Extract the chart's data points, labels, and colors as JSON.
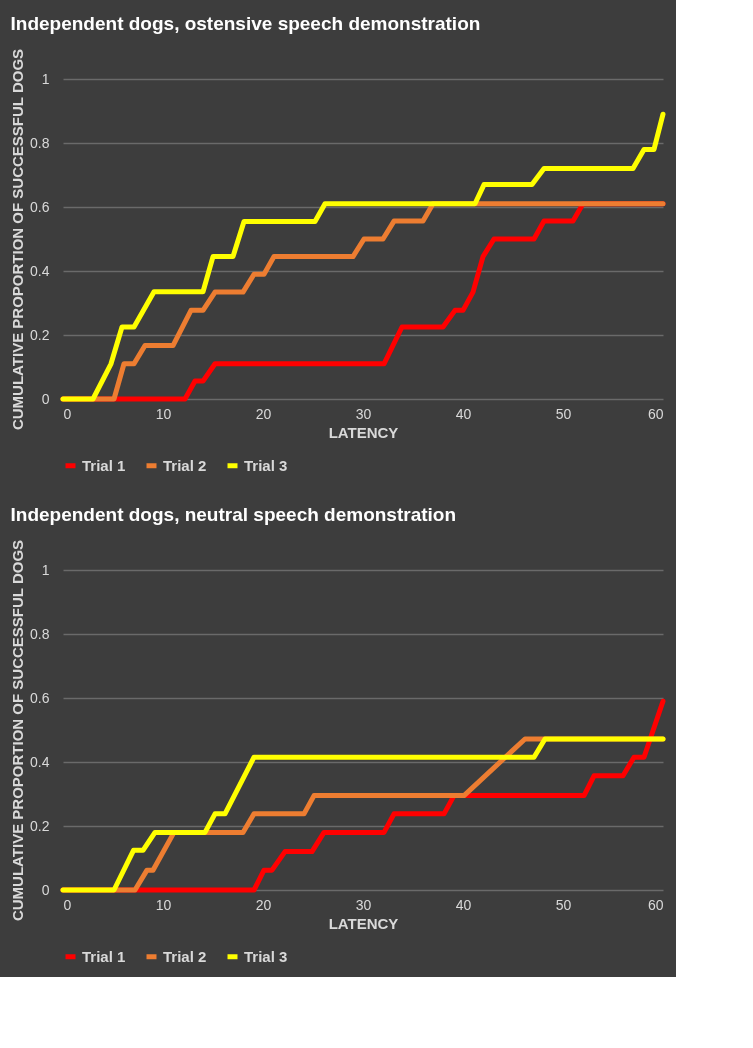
{
  "chart_data": [
    {
      "type": "line",
      "title": "Independent dogs, ostensive speech demonstration",
      "xlabel": "LATENCY",
      "ylabel": "CUMULATIVE PROPORTION OF SUCCESSFUL DOGS",
      "xlim": [
        0,
        60
      ],
      "ylim": [
        0,
        1
      ],
      "xticks": [
        0,
        10,
        20,
        30,
        40,
        50,
        60
      ],
      "yticks": [
        0,
        0.2,
        0.4,
        0.6,
        0.8,
        1
      ],
      "grid": "y",
      "legend": "bottom",
      "series": [
        {
          "name": "Trial 1",
          "color": "#ff0000",
          "x": [
            0,
            12.2,
            13.2,
            14.0,
            15.2,
            32.1,
            33.9,
            38.0,
            39.2,
            40.0,
            41.0,
            42.0,
            43.1,
            47.1,
            48.1,
            51.0,
            52.0,
            60
          ],
          "values": [
            0,
            0,
            0.056,
            0.056,
            0.11,
            0.11,
            0.225,
            0.225,
            0.277,
            0.277,
            0.334,
            0.445,
            0.5,
            0.5,
            0.556,
            0.556,
            0.61,
            0.61
          ]
        },
        {
          "name": "Trial 2",
          "color": "#ed7d31",
          "x": [
            0,
            5.1,
            6.1,
            7.1,
            8.2,
            11.0,
            12.8,
            14.0,
            15.2,
            18.0,
            19.1,
            20.1,
            21.1,
            29.0,
            30.1,
            32.0,
            33.1,
            36.0,
            37.0,
            60
          ],
          "values": [
            0,
            0,
            0.11,
            0.11,
            0.167,
            0.167,
            0.277,
            0.277,
            0.334,
            0.334,
            0.39,
            0.39,
            0.445,
            0.445,
            0.5,
            0.5,
            0.556,
            0.556,
            0.61,
            0.61
          ]
        },
        {
          "name": "Trial 3",
          "color": "#ffff00",
          "x": [
            0,
            3.0,
            4.8,
            5.9,
            7.1,
            9.1,
            14.0,
            15.0,
            17.0,
            18.1,
            25.2,
            26.2,
            41.2,
            42.1,
            46.9,
            48.1,
            57.0,
            58.1,
            59.1,
            60
          ],
          "values": [
            0,
            0,
            0.11,
            0.225,
            0.225,
            0.335,
            0.335,
            0.445,
            0.445,
            0.555,
            0.555,
            0.61,
            0.61,
            0.67,
            0.67,
            0.72,
            0.72,
            0.78,
            0.78,
            0.89
          ]
        }
      ]
    },
    {
      "type": "line",
      "title": "Independent dogs, neutral speech demonstration",
      "xlabel": "LATENCY",
      "ylabel": "CUMULATIVE PROPORTION OF SUCCESSFUL DOGS",
      "xlim": [
        0,
        60
      ],
      "ylim": [
        0,
        1
      ],
      "xticks": [
        0,
        10,
        20,
        30,
        40,
        50,
        60
      ],
      "yticks": [
        0,
        0.2,
        0.4,
        0.6,
        0.8,
        1
      ],
      "grid": "y",
      "legend": "bottom",
      "series": [
        {
          "name": "Trial 1",
          "color": "#ff0000",
          "x": [
            0,
            19.1,
            20.1,
            20.9,
            22.2,
            24.9,
            26.1,
            32.1,
            33.1,
            38.1,
            39.1,
            52.1,
            53.1,
            56.0,
            57.1,
            58.1,
            60
          ],
          "values": [
            0,
            0,
            0.062,
            0.062,
            0.12,
            0.12,
            0.18,
            0.18,
            0.238,
            0.238,
            0.295,
            0.295,
            0.357,
            0.357,
            0.415,
            0.415,
            0.59
          ]
        },
        {
          "name": "Trial 2",
          "color": "#ed7d31",
          "x": [
            0,
            7.2,
            8.4,
            9.0,
            11.1,
            18.0,
            19.1,
            24.1,
            25.1,
            40.1,
            46.2,
            60
          ],
          "values": [
            0,
            0,
            0.062,
            0.062,
            0.18,
            0.18,
            0.238,
            0.238,
            0.295,
            0.295,
            0.472,
            0.472
          ]
        },
        {
          "name": "Trial 3",
          "color": "#ffff00",
          "x": [
            0,
            5.1,
            7.05,
            8.0,
            9.2,
            14.2,
            15.2,
            16.2,
            19.1,
            47.1,
            48.2,
            60
          ],
          "values": [
            0,
            0,
            0.124,
            0.124,
            0.18,
            0.18,
            0.238,
            0.238,
            0.415,
            0.415,
            0.472,
            0.472
          ]
        }
      ]
    }
  ]
}
